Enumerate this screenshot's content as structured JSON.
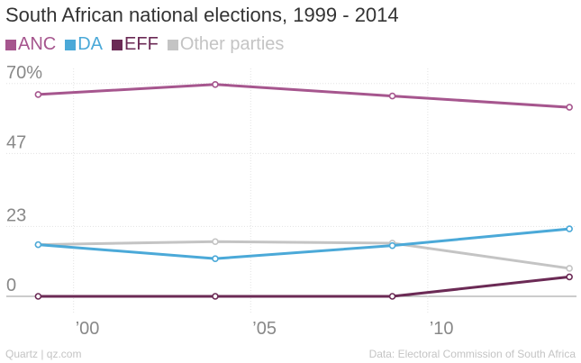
{
  "chart_data": {
    "type": "line",
    "title": "South African national elections, 1999 - 2014",
    "xlabel": "",
    "ylabel": "",
    "x": [
      1999,
      2004,
      2009,
      2014
    ],
    "x_ticks": [
      2000,
      2005,
      2010
    ],
    "x_tick_labels": [
      "’00",
      "’05",
      "’10"
    ],
    "ylim": [
      0,
      72
    ],
    "y_ticks": [
      0,
      23,
      47,
      70
    ],
    "y_tick_labels": [
      "0",
      "23",
      "47",
      "70%"
    ],
    "grid": true,
    "legend_position": "top-left",
    "series": [
      {
        "name": "ANC",
        "color": "#a6568e",
        "values": [
          66.4,
          69.7,
          65.9,
          62.2
        ]
      },
      {
        "name": "DA",
        "color": "#4ba9d8",
        "values": [
          17.0,
          12.4,
          16.7,
          22.2
        ]
      },
      {
        "name": "EFF",
        "color": "#6b2a55",
        "values": [
          0.0,
          0.0,
          0.0,
          6.4
        ]
      },
      {
        "name": "Other parties",
        "color": "#c4c4c4",
        "values": [
          17.0,
          18.0,
          17.5,
          9.2
        ]
      }
    ]
  },
  "footer": {
    "source_left": "Quartz | qz.com",
    "source_right": "Data: Electoral Commission of South Africa"
  }
}
